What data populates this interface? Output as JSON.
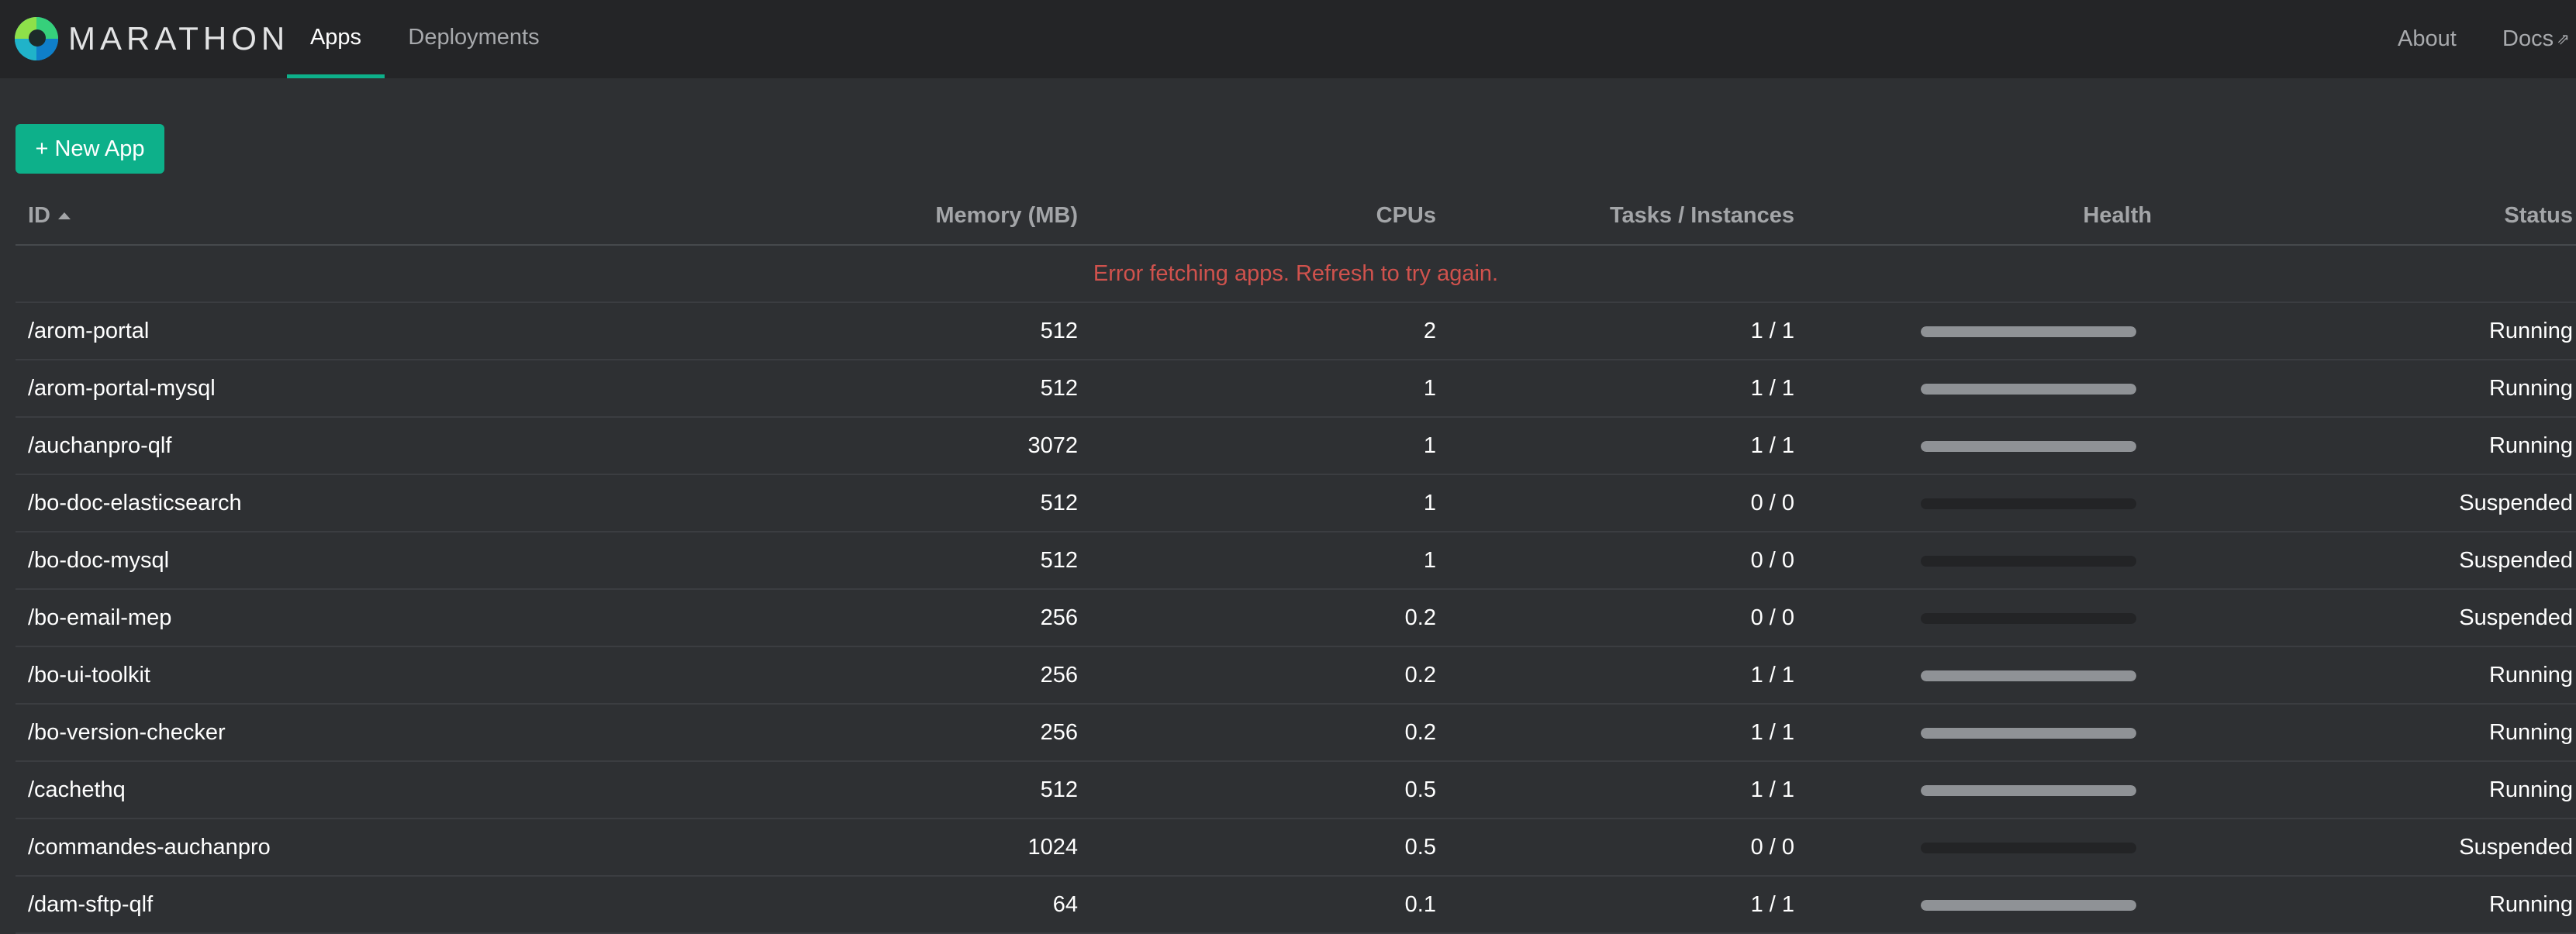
{
  "nav": {
    "brand": "MARATHON",
    "tabs": [
      {
        "label": "Apps",
        "active": true
      },
      {
        "label": "Deployments",
        "active": false
      }
    ],
    "about": "About",
    "docs": "Docs",
    "docs_icon": "⇗"
  },
  "toolbar": {
    "new_app_label": "+ New App"
  },
  "table": {
    "columns": {
      "id": "ID",
      "memory": "Memory (MB)",
      "cpus": "CPUs",
      "tasks": "Tasks / Instances",
      "health": "Health",
      "status": "Status"
    },
    "error_message": "Error fetching apps. Refresh to try again.",
    "rows": [
      {
        "id": "/arom-portal",
        "memory": "512",
        "cpus": "2",
        "tasks": "1 / 1",
        "health": 1,
        "status": "Running"
      },
      {
        "id": "/arom-portal-mysql",
        "memory": "512",
        "cpus": "1",
        "tasks": "1 / 1",
        "health": 1,
        "status": "Running"
      },
      {
        "id": "/auchanpro-qlf",
        "memory": "3072",
        "cpus": "1",
        "tasks": "1 / 1",
        "health": 1,
        "status": "Running"
      },
      {
        "id": "/bo-doc-elasticsearch",
        "memory": "512",
        "cpus": "1",
        "tasks": "0 / 0",
        "health": 0,
        "status": "Suspended"
      },
      {
        "id": "/bo-doc-mysql",
        "memory": "512",
        "cpus": "1",
        "tasks": "0 / 0",
        "health": 0,
        "status": "Suspended"
      },
      {
        "id": "/bo-email-mep",
        "memory": "256",
        "cpus": "0.2",
        "tasks": "0 / 0",
        "health": 0,
        "status": "Suspended"
      },
      {
        "id": "/bo-ui-toolkit",
        "memory": "256",
        "cpus": "0.2",
        "tasks": "1 / 1",
        "health": 1,
        "status": "Running"
      },
      {
        "id": "/bo-version-checker",
        "memory": "256",
        "cpus": "0.2",
        "tasks": "1 / 1",
        "health": 1,
        "status": "Running"
      },
      {
        "id": "/cachethq",
        "memory": "512",
        "cpus": "0.5",
        "tasks": "1 / 1",
        "health": 1,
        "status": "Running"
      },
      {
        "id": "/commandes-auchanpro",
        "memory": "1024",
        "cpus": "0.5",
        "tasks": "0 / 0",
        "health": 0,
        "status": "Suspended"
      },
      {
        "id": "/dam-sftp-qlf",
        "memory": "64",
        "cpus": "0.1",
        "tasks": "1 / 1",
        "health": 1,
        "status": "Running"
      }
    ]
  },
  "colors": {
    "accent": "#0db08a",
    "error": "#d0524d",
    "health_ok": "#8f9296",
    "health_empty": "#232426"
  }
}
